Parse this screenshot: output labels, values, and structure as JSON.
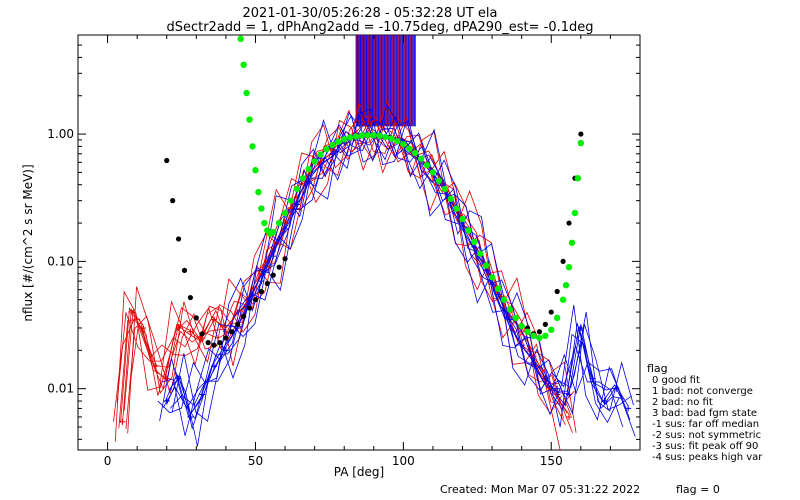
{
  "header": {
    "title_line1": "2021-01-30/05:26:28 - 05:32:28 UT ela",
    "title_line2": "dSectr2add = 1, dPhAng2add = -10.75deg, dPA290_est=  -0.1deg"
  },
  "footer": {
    "created": "Created: Mon Mar 07 05:31:22 2022",
    "flag": "flag = 0"
  },
  "legend": {
    "title": "flag",
    "items": [
      "0 good fit",
      "1 bad: not converge",
      "2 bad: no fit",
      "3 bad: bad fgm state",
      "-1 sus: far off median",
      "-2 sus: not symmetric",
      "-3 sus: fit peak off 90",
      "-4 sus: peaks high var"
    ]
  },
  "colors": {
    "red_series": "#e00000",
    "blue_series": "#0000e8",
    "black_fit": "#000000",
    "green_fit": "#00ee00"
  },
  "chart_data": {
    "type": "line",
    "xlabel": "PA [deg]",
    "ylabel": "nflux [#/(cm^2 s sr MeV)]",
    "xlim": [
      -10,
      180
    ],
    "ylim": [
      0.0033,
      6.0
    ],
    "yscale": "log",
    "xticks": [
      0,
      50,
      100,
      150
    ],
    "xtick_labels": [
      "0",
      "50",
      "100",
      "150"
    ],
    "yticks": [
      0.01,
      0.1,
      1.0
    ],
    "ytick_labels": [
      "0.01",
      "0.10",
      "1.00"
    ],
    "series": [
      {
        "color": "red",
        "x": [
          5,
          8,
          12,
          16,
          20,
          24,
          28,
          32,
          36,
          40,
          44,
          48,
          52,
          56,
          60,
          64,
          68,
          72,
          76,
          80,
          84,
          88,
          92,
          96,
          100,
          104,
          108,
          112,
          116,
          120,
          124,
          128,
          132,
          136,
          140,
          144,
          148,
          152,
          156
        ],
        "y": [
          0.0055,
          0.04,
          0.03,
          0.015,
          0.012,
          0.03,
          0.028,
          0.025,
          0.035,
          0.028,
          0.04,
          0.05,
          0.08,
          0.12,
          0.2,
          0.32,
          0.45,
          0.6,
          0.75,
          0.88,
          0.95,
          1.0,
          0.98,
          0.92,
          0.85,
          0.72,
          0.6,
          0.45,
          0.32,
          0.22,
          0.14,
          0.09,
          0.06,
          0.04,
          0.028,
          0.018,
          0.012,
          0.009,
          0.006
        ]
      },
      {
        "color": "blue",
        "x": [
          20,
          24,
          28,
          32,
          36,
          40,
          44,
          48,
          52,
          56,
          60,
          64,
          68,
          72,
          76,
          80,
          84,
          88,
          92,
          96,
          100,
          104,
          108,
          112,
          116,
          120,
          124,
          128,
          132,
          136,
          140,
          144,
          148,
          152,
          156,
          160,
          164,
          168,
          172,
          176
        ],
        "y": [
          0.008,
          0.012,
          0.006,
          0.009,
          0.015,
          0.02,
          0.03,
          0.05,
          0.07,
          0.11,
          0.18,
          0.28,
          0.42,
          0.55,
          0.7,
          0.85,
          0.93,
          1.0,
          1.0,
          0.93,
          0.85,
          0.72,
          0.58,
          0.42,
          0.3,
          0.2,
          0.13,
          0.085,
          0.055,
          0.035,
          0.022,
          0.016,
          0.012,
          0.01,
          0.009,
          0.03,
          0.012,
          0.008,
          0.01,
          0.007
        ]
      },
      {
        "color": "black",
        "x": [
          20,
          22,
          24,
          26,
          28,
          30,
          32,
          34,
          36,
          38,
          40,
          42,
          44,
          46,
          48,
          50,
          52,
          54,
          56,
          58,
          60,
          142,
          144,
          146,
          148,
          150,
          152,
          154,
          156,
          158,
          160
        ],
        "y": [
          0.62,
          0.3,
          0.15,
          0.085,
          0.052,
          0.036,
          0.027,
          0.023,
          0.022,
          0.023,
          0.025,
          0.028,
          0.032,
          0.037,
          0.043,
          0.05,
          0.058,
          0.067,
          0.078,
          0.09,
          0.105,
          0.03,
          0.027,
          0.028,
          0.032,
          0.04,
          0.058,
          0.1,
          0.2,
          0.45,
          1.0
        ]
      },
      {
        "color": "green",
        "x": [
          45,
          46,
          47,
          48,
          49,
          50,
          51,
          52,
          53,
          54,
          55,
          56,
          58,
          60,
          62,
          64,
          66,
          68,
          70,
          72,
          74,
          76,
          78,
          80,
          82,
          84,
          86,
          88,
          90,
          92,
          94,
          96,
          98,
          100,
          102,
          104,
          106,
          108,
          110,
          112,
          114,
          116,
          118,
          120,
          122,
          124,
          126,
          128,
          130,
          132,
          134,
          136,
          138,
          140,
          142,
          144,
          146,
          148,
          150,
          152,
          154,
          155,
          156,
          157,
          158,
          159,
          160
        ],
        "y": [
          5.6,
          3.5,
          2.1,
          1.3,
          0.8,
          0.52,
          0.35,
          0.26,
          0.2,
          0.175,
          0.165,
          0.17,
          0.2,
          0.24,
          0.3,
          0.37,
          0.45,
          0.53,
          0.61,
          0.69,
          0.76,
          0.82,
          0.87,
          0.91,
          0.94,
          0.96,
          0.975,
          0.98,
          0.98,
          0.97,
          0.95,
          0.92,
          0.88,
          0.83,
          0.77,
          0.71,
          0.64,
          0.57,
          0.5,
          0.43,
          0.37,
          0.31,
          0.26,
          0.215,
          0.175,
          0.142,
          0.115,
          0.093,
          0.075,
          0.061,
          0.05,
          0.042,
          0.036,
          0.031,
          0.028,
          0.026,
          0.025,
          0.026,
          0.029,
          0.036,
          0.05,
          0.065,
          0.09,
          0.14,
          0.24,
          0.45,
          0.85
        ]
      }
    ],
    "vertical_lines": {
      "x_range": [
        84,
        104
      ],
      "y_range": [
        1.15,
        6.0
      ]
    },
    "grid": false,
    "legend_placement": "right"
  }
}
